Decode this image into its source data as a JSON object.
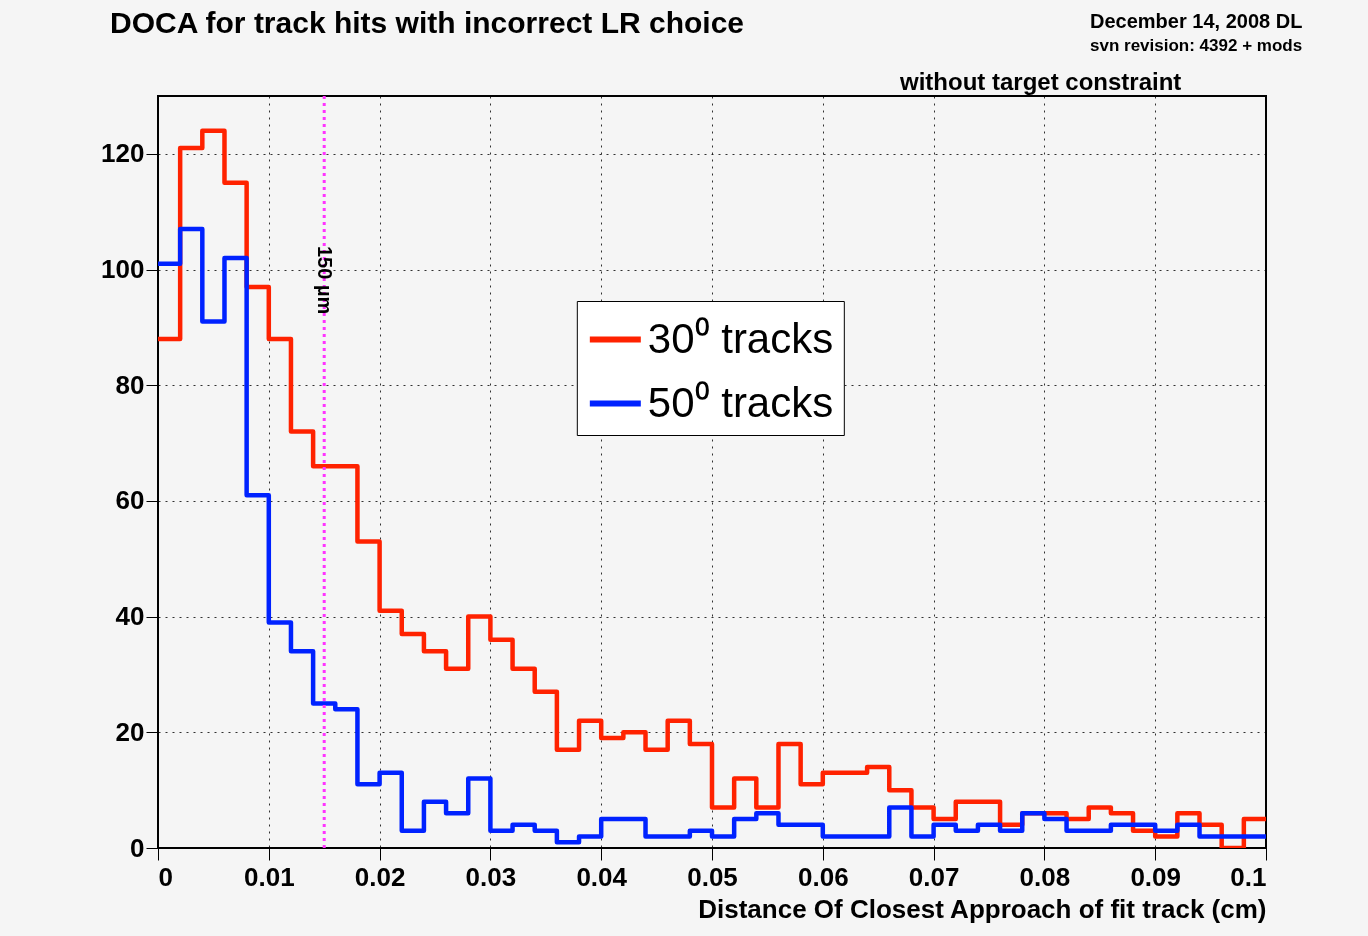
{
  "chart_data": {
    "type": "histogram",
    "title": "DOCA for track hits with incorrect LR choice",
    "xlabel": "Distance Of Closest Approach of fit track (cm)",
    "annotations": [
      "December 14, 2008 DL",
      "svn revision: 4392 + mods",
      "without target constraint"
    ],
    "bins": [
      0,
      0.002,
      0.004,
      0.006,
      0.008,
      0.01,
      0.012,
      0.014,
      0.016,
      0.018,
      0.02,
      0.022,
      0.024,
      0.026,
      0.028,
      0.03,
      0.032,
      0.034,
      0.036,
      0.038,
      0.04,
      0.042,
      0.044,
      0.046,
      0.048,
      0.05,
      0.052,
      0.054,
      0.056,
      0.058,
      0.06,
      0.062,
      0.064,
      0.066,
      0.068,
      0.07,
      0.072,
      0.074,
      0.076,
      0.078,
      0.08,
      0.082,
      0.084,
      0.086,
      0.088,
      0.09,
      0.092,
      0.094,
      0.096,
      0.098,
      0.1
    ],
    "series": [
      {
        "name": "30⁰ tracks",
        "color": "#ff2200",
        "values": [
          88,
          121,
          124,
          115,
          97,
          88,
          72,
          66,
          66,
          53,
          41,
          37,
          34,
          31,
          40,
          36,
          31,
          27,
          17,
          22,
          19,
          20,
          17,
          22,
          18,
          7,
          12,
          7,
          18,
          11,
          13,
          13,
          14,
          10,
          7,
          5,
          8,
          8,
          4,
          6,
          6,
          5,
          7,
          6,
          3,
          2,
          6,
          4,
          0,
          5
        ]
      },
      {
        "name": "50⁰ tracks",
        "color": "#0022ff",
        "values": [
          101,
          107,
          91,
          102,
          61,
          39,
          34,
          25,
          24,
          11,
          13,
          3,
          8,
          6,
          12,
          3,
          4,
          3,
          1,
          2,
          5,
          5,
          2,
          2,
          3,
          2,
          5,
          6,
          4,
          4,
          2,
          2,
          2,
          7,
          2,
          4,
          3,
          4,
          3,
          6,
          5,
          3,
          3,
          4,
          4,
          3,
          4,
          2,
          2,
          2
        ]
      }
    ],
    "xlim": [
      0,
      0.1
    ],
    "xticks": [
      0,
      0.01,
      0.02,
      0.03,
      0.04,
      0.05,
      0.06,
      0.07,
      0.08,
      0.09,
      0.1
    ],
    "ylim": [
      0,
      130
    ],
    "yticks": [
      0,
      20,
      40,
      60,
      80,
      100,
      120
    ],
    "ref_lines": [
      {
        "axis": "x",
        "value": 0.015,
        "label": "150 µm",
        "color": "#ff33ff",
        "line_style": "dotted"
      }
    ],
    "grid": true,
    "legend": "top"
  }
}
